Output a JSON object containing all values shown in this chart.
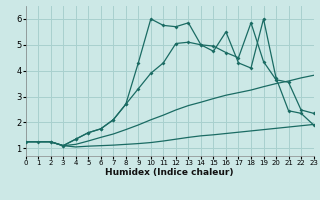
{
  "xlabel": "Humidex (Indice chaleur)",
  "bg_color": "#cce8e6",
  "grid_color": "#a8d0ce",
  "line_color": "#1a6b63",
  "xlim": [
    0,
    23
  ],
  "ylim": [
    0.7,
    6.5
  ],
  "xticks": [
    0,
    1,
    2,
    3,
    4,
    5,
    6,
    7,
    8,
    9,
    10,
    11,
    12,
    13,
    14,
    15,
    16,
    17,
    18,
    19,
    20,
    21,
    22,
    23
  ],
  "yticks": [
    1,
    2,
    3,
    4,
    5,
    6
  ],
  "series": [
    {
      "x": [
        0,
        1,
        2,
        3,
        4,
        5,
        6,
        7,
        8,
        9,
        10,
        11,
        12,
        13,
        14,
        15,
        16,
        17,
        18,
        19,
        20,
        21,
        22,
        23
      ],
      "y": [
        1.25,
        1.25,
        1.25,
        1.1,
        1.05,
        1.08,
        1.1,
        1.12,
        1.15,
        1.18,
        1.22,
        1.28,
        1.35,
        1.42,
        1.48,
        1.52,
        1.57,
        1.62,
        1.67,
        1.72,
        1.77,
        1.82,
        1.87,
        1.92
      ],
      "has_marker": false
    },
    {
      "x": [
        0,
        1,
        2,
        3,
        4,
        5,
        6,
        7,
        8,
        9,
        10,
        11,
        12,
        13,
        14,
        15,
        16,
        17,
        18,
        19,
        20,
        21,
        22,
        23
      ],
      "y": [
        1.25,
        1.25,
        1.25,
        1.1,
        1.15,
        1.28,
        1.42,
        1.55,
        1.72,
        1.9,
        2.1,
        2.28,
        2.48,
        2.65,
        2.78,
        2.92,
        3.05,
        3.15,
        3.25,
        3.38,
        3.5,
        3.6,
        3.72,
        3.82
      ],
      "has_marker": false
    },
    {
      "x": [
        0,
        1,
        2,
        3,
        4,
        5,
        6,
        7,
        8,
        9,
        10,
        11,
        12,
        13,
        14,
        15,
        16,
        17,
        18,
        19,
        20,
        21,
        22,
        23
      ],
      "y": [
        1.25,
        1.25,
        1.25,
        1.1,
        1.35,
        1.6,
        1.75,
        2.1,
        2.7,
        3.3,
        3.9,
        4.3,
        5.05,
        5.1,
        5.0,
        4.95,
        4.7,
        4.5,
        5.85,
        4.35,
        3.65,
        3.55,
        2.48,
        2.35
      ],
      "has_marker": true
    },
    {
      "x": [
        2,
        3,
        4,
        5,
        6,
        7,
        8,
        9,
        10,
        11,
        12,
        13,
        14,
        15,
        16,
        17,
        18,
        19,
        20,
        21,
        22,
        23
      ],
      "y": [
        1.25,
        1.1,
        1.35,
        1.6,
        1.75,
        2.1,
        2.7,
        4.3,
        6.0,
        5.75,
        5.7,
        5.85,
        5.0,
        4.75,
        5.5,
        4.3,
        4.1,
        6.0,
        3.72,
        2.45,
        2.35,
        1.9
      ],
      "has_marker": true
    }
  ]
}
